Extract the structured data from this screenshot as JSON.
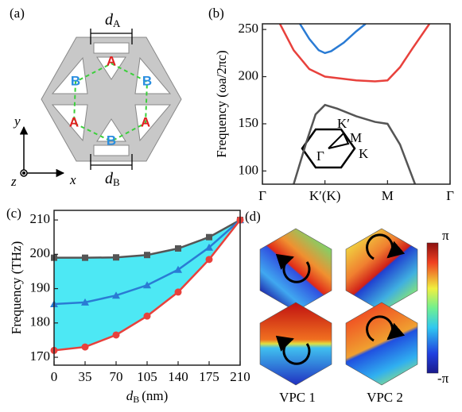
{
  "panels": {
    "a": {
      "label": "(a)",
      "d_top": {
        "symbol": "d",
        "subscript": "A"
      },
      "d_bottom": {
        "symbol": "d",
        "subscript": "B"
      },
      "site_a": "A",
      "site_b": "B",
      "axis_x": "x",
      "axis_y": "y",
      "axis_z": "z"
    },
    "b": {
      "bz_labels": [
        "K′",
        "M",
        "Γ",
        "K"
      ]
    },
    "d": {
      "label": "(d)",
      "colorbar_max": "π",
      "colorbar_min": "-π",
      "captions": [
        "VPC 1",
        "VPC 2"
      ]
    }
  },
  "chart_data": [
    {
      "type": "line",
      "panel": "(b)",
      "y_label": "Frequency (ωa/2πc)",
      "xlim": [
        0,
        3
      ],
      "xticks": [
        {
          "value": 0,
          "label": "Γ"
        },
        {
          "value": 1,
          "label": "K′(K)"
        },
        {
          "value": 2,
          "label": "M"
        },
        {
          "value": 3,
          "label": "Γ"
        }
      ],
      "ylim": [
        86,
        256
      ],
      "yticks": [
        100,
        150,
        200,
        250
      ],
      "series": [
        {
          "color": "#555555",
          "x": [
            0.5,
            0.7,
            0.85,
            1.0,
            1.2,
            1.5,
            1.8,
            2.0,
            2.2,
            2.44
          ],
          "values": [
            86,
            130,
            160,
            170,
            166,
            158,
            152,
            150,
            128,
            86
          ]
        },
        {
          "color": "#e8413c",
          "x": [
            0.28,
            0.5,
            0.75,
            1.0,
            1.25,
            1.5,
            1.8,
            2.0,
            2.2,
            2.4,
            2.67
          ],
          "values": [
            256,
            228,
            208,
            200,
            198,
            196,
            195,
            196,
            210,
            230,
            256
          ]
        },
        {
          "color": "#2a7bd4",
          "x": [
            0.6,
            0.75,
            0.9,
            1.0,
            1.1,
            1.3,
            1.5,
            1.65
          ],
          "values": [
            256,
            240,
            228,
            225,
            227,
            236,
            248,
            256
          ]
        }
      ]
    },
    {
      "type": "line",
      "panel": "(c)",
      "y_label": "Frequency (THz)",
      "x_label": {
        "symbol": "d",
        "subscript": "B",
        "unit": "(nm)"
      },
      "x": [
        0,
        35,
        70,
        105,
        140,
        175,
        210
      ],
      "xlim": [
        0,
        210
      ],
      "xticks": [
        0,
        35,
        70,
        105,
        140,
        175,
        210
      ],
      "ylim": [
        167.7,
        212.8
      ],
      "yticks": [
        170,
        180,
        190,
        200,
        210
      ],
      "fill_between": [
        0,
        2
      ],
      "fill_color": "#4de8f4",
      "series": [
        {
          "color": "#555555",
          "marker": "square",
          "values": [
            199,
            199,
            199.1,
            199.8,
            201.7,
            205,
            210
          ]
        },
        {
          "color": "#2a7bd4",
          "marker": "triangle",
          "values": [
            185.5,
            186,
            188,
            191,
            195.5,
            202,
            210
          ]
        },
        {
          "color": "#e8413c",
          "marker": "circle",
          "values": [
            172,
            173,
            176.5,
            182,
            189,
            198.5,
            210
          ]
        }
      ]
    }
  ]
}
